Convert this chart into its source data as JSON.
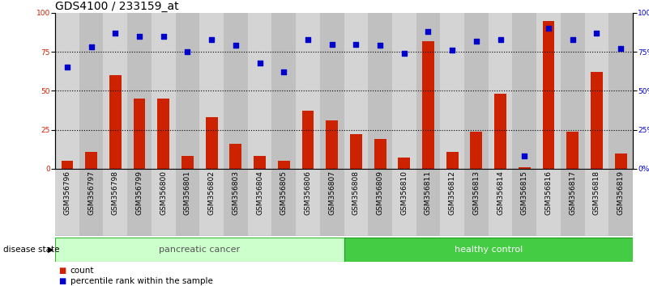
{
  "title": "GDS4100 / 233159_at",
  "samples": [
    "GSM356796",
    "GSM356797",
    "GSM356798",
    "GSM356799",
    "GSM356800",
    "GSM356801",
    "GSM356802",
    "GSM356803",
    "GSM356804",
    "GSM356805",
    "GSM356806",
    "GSM356807",
    "GSM356808",
    "GSM356809",
    "GSM356810",
    "GSM356811",
    "GSM356812",
    "GSM356813",
    "GSM356814",
    "GSM356815",
    "GSM356816",
    "GSM356817",
    "GSM356818",
    "GSM356819"
  ],
  "counts": [
    5,
    11,
    60,
    45,
    45,
    8,
    33,
    16,
    8,
    5,
    37,
    31,
    22,
    19,
    7,
    82,
    11,
    24,
    48,
    1,
    95,
    24,
    62,
    10
  ],
  "percentile": [
    65,
    78,
    87,
    85,
    85,
    75,
    83,
    79,
    68,
    62,
    83,
    80,
    80,
    79,
    74,
    88,
    76,
    82,
    83,
    8,
    90,
    83,
    87,
    77
  ],
  "n_pancreatic": 12,
  "n_healthy": 12,
  "bar_color": "#cc2200",
  "dot_color": "#0000cc",
  "pc_fill": "#ccffcc",
  "hc_fill": "#44cc44",
  "pc_text_color": "#555555",
  "hc_text_color": "#ffffff",
  "col_even": "#d4d4d4",
  "col_odd": "#c0c0c0",
  "bg_color": "#ffffff",
  "yticks": [
    0,
    25,
    50,
    75,
    100
  ],
  "ylim": [
    0,
    100
  ],
  "bar_width": 0.5,
  "title_fontsize": 10,
  "tick_fontsize": 6.5,
  "label_fontsize": 8,
  "legend_fontsize": 7.5,
  "ds_label_fontsize": 7.5
}
